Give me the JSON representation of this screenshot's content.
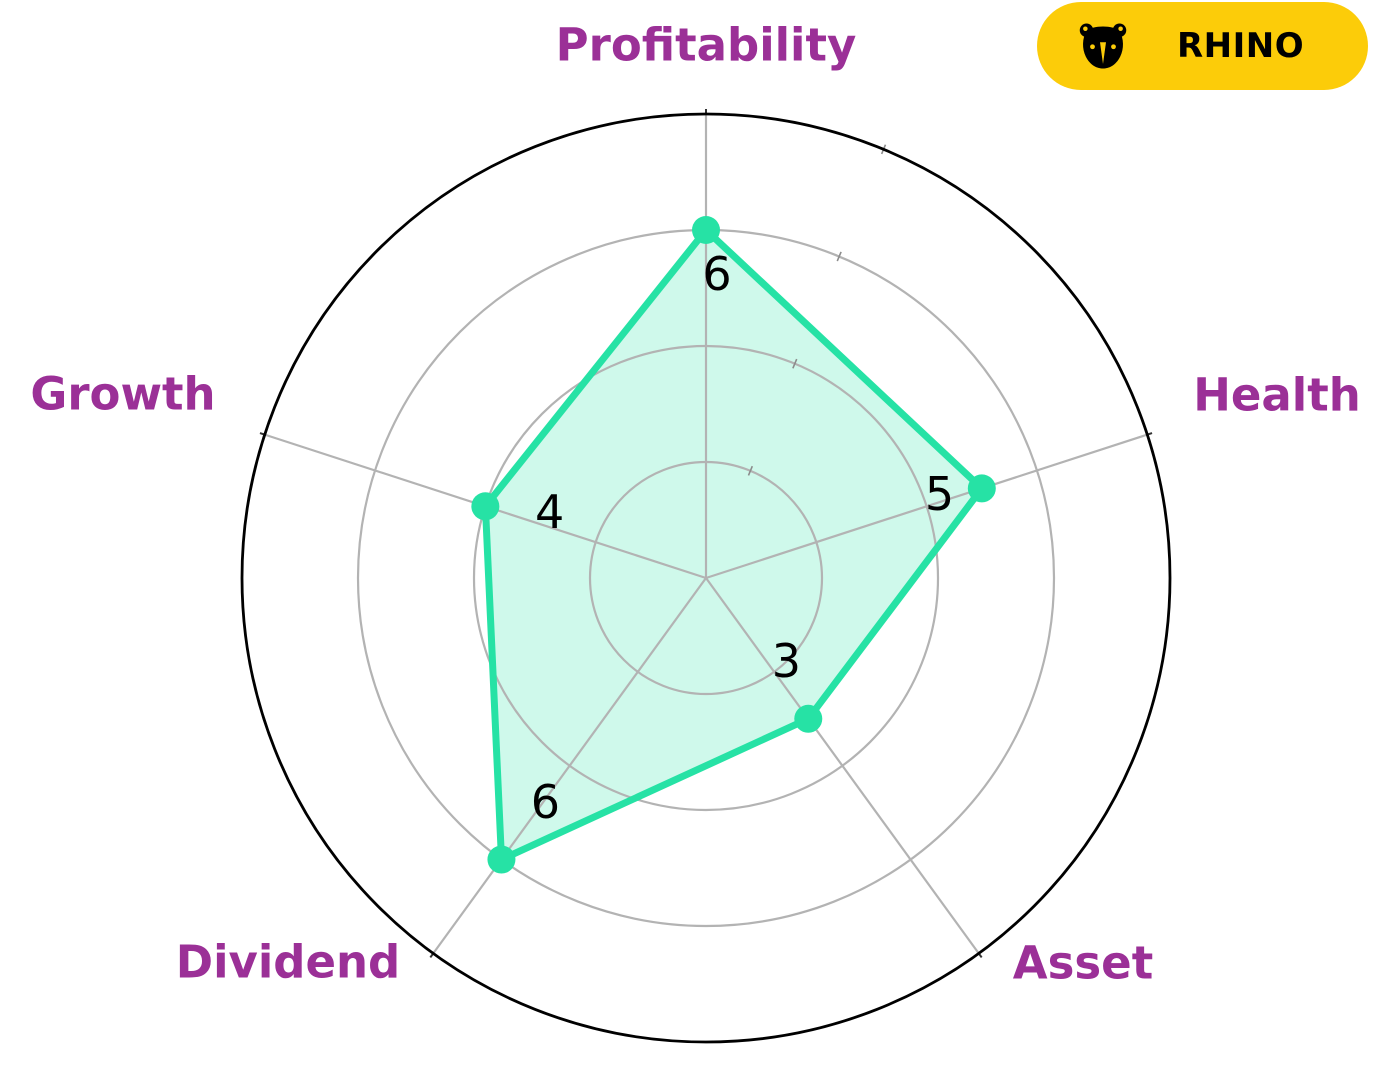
{
  "badge": {
    "label": "RHINO",
    "icon": "rhino-icon",
    "background": "#FCCC09",
    "text_color": "#000000"
  },
  "chart_data": {
    "type": "radar",
    "categories": [
      "Profitability",
      "Health",
      "Asset",
      "Dividend",
      "Growth"
    ],
    "values": [
      6,
      5,
      3,
      6,
      4
    ],
    "rmax": 8,
    "rings": [
      2,
      4,
      6,
      8
    ],
    "start_angle_deg": 90,
    "direction": "clockwise",
    "grid": true,
    "legend": false,
    "colors": {
      "series_line": "#26E2A5",
      "series_fill": "rgba(38, 226, 165, 0.22)",
      "marker": "#26E2A5",
      "grid_line": "#B3B3B3",
      "minor_tick": "#8C8C8C",
      "outer_ring": "#000000",
      "category_label": "#9B3097",
      "value_label": "#000000"
    }
  }
}
